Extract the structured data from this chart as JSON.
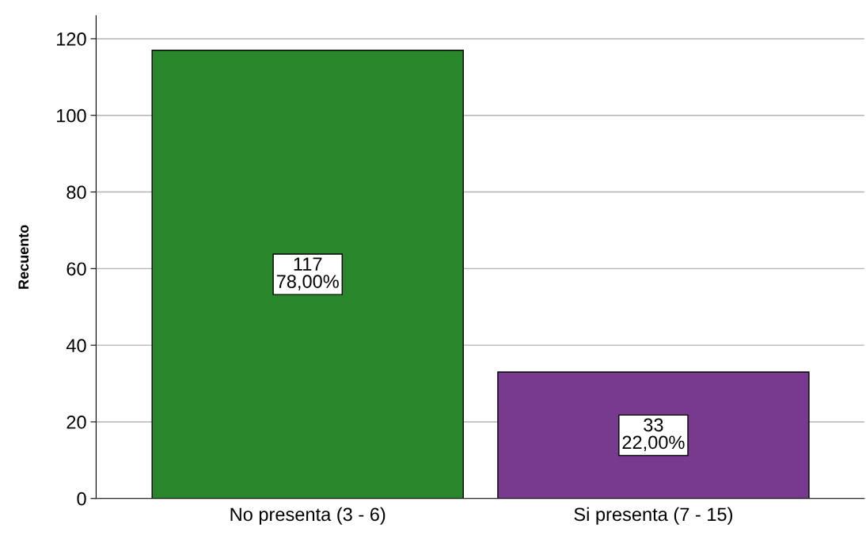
{
  "chart_data": {
    "type": "bar",
    "ylabel": "Recuento",
    "categories": [
      "No presenta (3 - 6)",
      "Si presenta (7 - 15)"
    ],
    "values": [
      117,
      33
    ],
    "colors": [
      "#2a862a",
      "#783a8e"
    ],
    "value_labels": [
      "117\n78,00%",
      "33\n22,00%"
    ],
    "ylim": [
      0,
      126
    ],
    "yticks": [
      0,
      20,
      40,
      60,
      80,
      100,
      120
    ],
    "grid": "y",
    "legend": false
  }
}
